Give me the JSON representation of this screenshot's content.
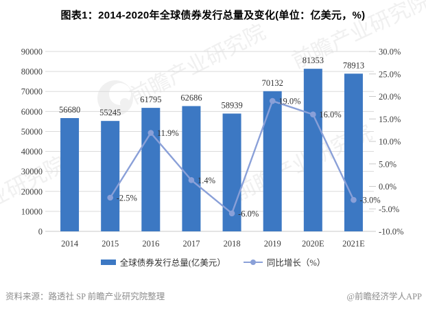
{
  "title": "图表1：2014-2020年全球债券发行总量及变化(单位：亿美元，%)",
  "watermark": {
    "text": "前瞻产业研究院"
  },
  "footer": {
    "source": "资料来源：路透社 SP 前瞻产业研究院整理",
    "brand": "@前瞻经济学人APP"
  },
  "colors": {
    "bar": "#3C78C3",
    "line": "#8AA0D8",
    "grid": "#DADADA",
    "axis_line": "#C9C9C9",
    "text": "#333333",
    "note": "#8C8C8C",
    "watermark": "#8A8A8A"
  },
  "legend": {
    "items": [
      {
        "label": "全球债券发行总量(亿美元）",
        "swatch": "bar"
      },
      {
        "label": "同比增长（%）",
        "swatch": "line"
      }
    ]
  },
  "chart_data": {
    "type": "bar+line",
    "title": "图表1：2014-2020年全球债券发行总量及变化(单位：亿美元，%)",
    "categories": [
      "2014",
      "2015",
      "2016",
      "2017",
      "2018",
      "2019",
      "2020E",
      "2021E"
    ],
    "series": [
      {
        "name": "全球债券发行总量(亿美元）",
        "type": "bar",
        "axis": "left",
        "values": [
          56680,
          55245,
          61795,
          62686,
          58939,
          70132,
          81353,
          78913
        ],
        "labels": [
          "56680",
          "55245",
          "61795",
          "62686",
          "58939",
          "70132",
          "81353",
          "78913"
        ]
      },
      {
        "name": "同比增长（%）",
        "type": "line",
        "axis": "right",
        "values": [
          null,
          -2.5,
          11.9,
          1.4,
          -6.0,
          19.0,
          16.0,
          -3.0
        ],
        "labels": [
          "",
          "-2.5%",
          "11.9%",
          "1.4%",
          "-6.0%",
          "19.0%",
          "16.0%",
          "-3.0%"
        ]
      }
    ],
    "left_axis": {
      "min": 0,
      "max": 90000,
      "tick_values": [
        0,
        10000,
        20000,
        30000,
        40000,
        50000,
        60000,
        70000,
        80000,
        90000
      ],
      "tick_labels": [
        "0",
        "10000",
        "20000",
        "30000",
        "40000",
        "50000",
        "60000",
        "70000",
        "80000",
        "90000"
      ]
    },
    "right_axis": {
      "min": -10,
      "max": 30,
      "tick_values": [
        -10,
        -5,
        0,
        5,
        10,
        15,
        20,
        25,
        30
      ],
      "tick_labels": [
        "-10.0%",
        "-5.0%",
        "0.0%",
        "5.0%",
        "10.0%",
        "15.0%",
        "20.0%",
        "25.0%",
        "30.0%"
      ]
    },
    "grid": true,
    "legend_position": "bottom"
  }
}
